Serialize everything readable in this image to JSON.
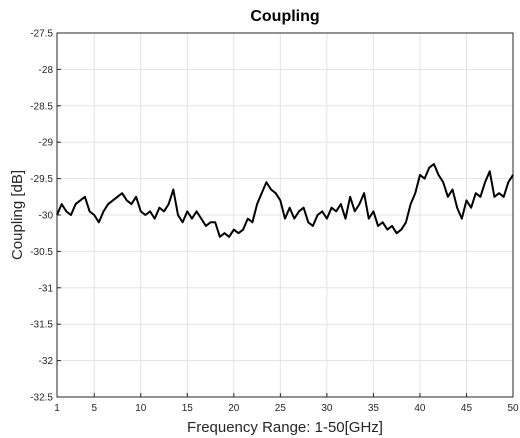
{
  "chart_data": {
    "type": "line",
    "title": "Coupling",
    "xlabel": "Frequency Range: 1-50[GHz]",
    "ylabel": "Coupling [dB]",
    "x": [
      1,
      1.5,
      2,
      2.5,
      3,
      3.5,
      4,
      4.5,
      5,
      5.5,
      6,
      6.5,
      7,
      7.5,
      8,
      8.5,
      9,
      9.5,
      10,
      10.5,
      11,
      11.5,
      12,
      12.5,
      13,
      13.5,
      14,
      14.5,
      15,
      15.5,
      16,
      16.5,
      17,
      17.5,
      18,
      18.5,
      19,
      19.5,
      20,
      20.5,
      21,
      21.5,
      22,
      22.5,
      23,
      23.5,
      24,
      24.5,
      25,
      25.5,
      26,
      26.5,
      27,
      27.5,
      28,
      28.5,
      29,
      29.5,
      30,
      30.5,
      31,
      31.5,
      32,
      32.5,
      33,
      33.5,
      34,
      34.5,
      35,
      35.5,
      36,
      36.5,
      37,
      37.5,
      38,
      38.5,
      39,
      39.5,
      40,
      40.5,
      41,
      41.5,
      42,
      42.5,
      43,
      43.5,
      44,
      44.5,
      45,
      45.5,
      46,
      46.5,
      47,
      47.5,
      48,
      48.5,
      49,
      49.5,
      50
    ],
    "series": [
      {
        "color": "#000000",
        "values": [
          -30.0,
          -29.85,
          -29.95,
          -30.0,
          -29.85,
          -29.8,
          -29.75,
          -29.95,
          -30.0,
          -30.1,
          -29.95,
          -29.85,
          -29.8,
          -29.75,
          -29.7,
          -29.8,
          -29.85,
          -29.75,
          -29.95,
          -30.0,
          -29.95,
          -30.05,
          -29.9,
          -29.95,
          -29.85,
          -29.65,
          -30.0,
          -30.1,
          -29.95,
          -30.05,
          -29.95,
          -30.05,
          -30.15,
          -30.1,
          -30.1,
          -30.3,
          -30.25,
          -30.3,
          -30.2,
          -30.25,
          -30.2,
          -30.05,
          -30.1,
          -29.85,
          -29.7,
          -29.55,
          -29.65,
          -29.7,
          -29.8,
          -30.05,
          -29.9,
          -30.05,
          -29.95,
          -29.9,
          -30.1,
          -30.15,
          -30.0,
          -29.95,
          -30.05,
          -29.9,
          -29.95,
          -29.85,
          -30.05,
          -29.75,
          -29.95,
          -29.85,
          -29.7,
          -30.05,
          -29.95,
          -30.15,
          -30.1,
          -30.2,
          -30.15,
          -30.25,
          -30.2,
          -30.1,
          -29.85,
          -29.7,
          -29.45,
          -29.5,
          -29.35,
          -29.3,
          -29.45,
          -29.55,
          -29.75,
          -29.65,
          -29.9,
          -30.05,
          -29.8,
          -29.9,
          -29.7,
          -29.75,
          -29.55,
          -29.4,
          -29.75,
          -29.7,
          -29.75,
          -29.55,
          -29.45
        ]
      }
    ],
    "xlim": [
      1,
      50
    ],
    "xticks": [
      1,
      5,
      10,
      15,
      20,
      25,
      30,
      35,
      40,
      45,
      50
    ],
    "ylim": [
      -32.5,
      -27.5
    ],
    "yticks": [
      -32.5,
      -32,
      -31.5,
      -31,
      -30.5,
      -30,
      -29.5,
      -29,
      -28.5,
      -28,
      -27.5
    ],
    "grid": true
  }
}
